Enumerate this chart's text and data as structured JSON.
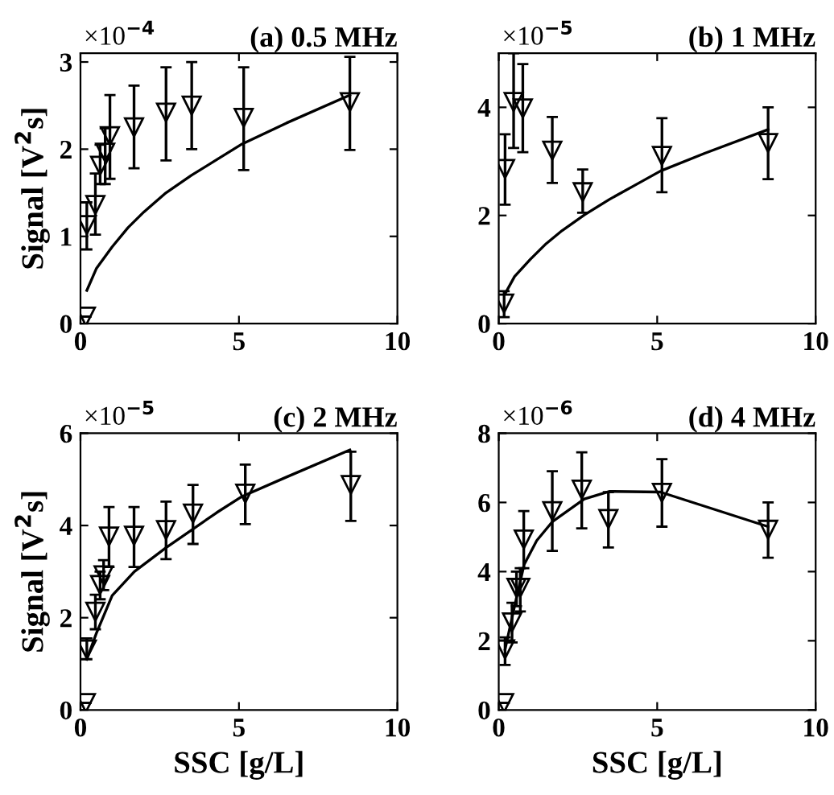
{
  "chart_data": [
    {
      "type": "scatter",
      "title": "(a) 0.5 MHz",
      "ylabel": "Signal [V$^{2}$s]",
      "annotations": [
        "×10$^{−4}$"
      ],
      "xlim": [
        0,
        10
      ],
      "xticks": [
        0,
        5,
        10
      ],
      "ylim": [
        0,
        3.1
      ],
      "yticks": [
        0,
        1,
        2,
        3
      ],
      "grid": false,
      "legend": false,
      "series": [
        {
          "color": "#000000",
          "marker": "triangle",
          "x": [
            0.17,
            0.2,
            0.47,
            0.62,
            0.78,
            0.93,
            1.69,
            2.7,
            3.51,
            5.15,
            8.5
          ],
          "values": [
            0.08,
            1.13,
            1.36,
            1.81,
            1.96,
            2.15,
            2.25,
            2.42,
            2.5,
            2.36,
            2.54
          ],
          "errors": [
            null,
            [
              0.85,
              1.39
            ],
            [
              1.02,
              1.72
            ],
            [
              1.6,
              2.05
            ],
            [
              1.6,
              2.24
            ],
            [
              1.66,
              2.62
            ],
            [
              1.78,
              2.73
            ],
            [
              1.87,
              2.94
            ],
            [
              2.0,
              3.0
            ],
            [
              1.76,
              2.94
            ],
            [
              1.99,
              3.06
            ]
          ]
        },
        {
          "type": "line",
          "color": "#000000",
          "marker": "none",
          "line_style": "solid",
          "x": [
            0.2,
            0.5,
            1,
            1.5,
            2,
            2.7,
            3.5,
            4.3,
            5.1,
            6.5,
            8.5
          ],
          "values": [
            0.38,
            0.63,
            0.88,
            1.1,
            1.28,
            1.5,
            1.7,
            1.88,
            2.06,
            2.3,
            2.62
          ]
        }
      ]
    },
    {
      "type": "scatter",
      "title": "(b) 1 MHz",
      "annotations": [
        "×10$^{−5}$"
      ],
      "xlim": [
        0,
        10
      ],
      "xticks": [
        0,
        5,
        10
      ],
      "ylim": [
        0,
        5
      ],
      "yticks": [
        0,
        2,
        4
      ],
      "grid": false,
      "legend": false,
      "series": [
        {
          "color": "#000000",
          "marker": "triangle",
          "x": [
            0.17,
            0.2,
            0.47,
            0.76,
            1.69,
            2.65,
            5.15,
            8.5
          ],
          "values": [
            0.37,
            2.86,
            4.1,
            3.98,
            3.2,
            2.43,
            3.1,
            3.34
          ],
          "errors": [
            [
              0.12,
              0.6
            ],
            [
              2.2,
              3.5
            ],
            [
              3.25,
              5.0
            ],
            [
              3.17,
              4.8
            ],
            [
              2.6,
              3.82
            ],
            [
              2.05,
              2.85
            ],
            [
              2.43,
              3.8
            ],
            [
              2.67,
              4.0
            ]
          ]
        },
        {
          "type": "line",
          "color": "#000000",
          "marker": "none",
          "line_style": "solid",
          "x": [
            0.2,
            0.5,
            1,
            1.5,
            2,
            2.7,
            3.5,
            4.3,
            5.1,
            6.5,
            8.5
          ],
          "values": [
            0.55,
            0.87,
            1.19,
            1.48,
            1.72,
            2.01,
            2.3,
            2.56,
            2.82,
            3.15,
            3.59
          ]
        }
      ]
    },
    {
      "type": "scatter",
      "title": "(c) 2 MHz",
      "xlabel": "SSC [g/L]",
      "ylabel": "Signal [V$^{2}$s]",
      "annotations": [
        "×10$^{−5}$"
      ],
      "xlim": [
        0,
        10
      ],
      "xticks": [
        0,
        5,
        10
      ],
      "ylim": [
        0,
        6
      ],
      "yticks": [
        0,
        2,
        4,
        6
      ],
      "grid": false,
      "legend": false,
      "series": [
        {
          "color": "#000000",
          "marker": "triangle",
          "x": [
            0.17,
            0.2,
            0.47,
            0.62,
            0.73,
            0.9,
            1.69,
            2.7,
            3.55,
            5.2,
            8.53
          ],
          "values": [
            0.15,
            1.31,
            2.13,
            2.71,
            2.92,
            3.76,
            3.78,
            3.9,
            4.26,
            4.69,
            4.88
          ],
          "errors": [
            null,
            [
              1.1,
              1.55
            ],
            [
              1.75,
              2.5
            ],
            [
              2.4,
              3.0
            ],
            [
              2.6,
              3.25
            ],
            [
              3.1,
              4.4
            ],
            [
              3.1,
              4.4
            ],
            [
              3.27,
              4.52
            ],
            [
              3.6,
              4.88
            ],
            [
              4.03,
              5.32
            ],
            [
              4.1,
              5.6
            ]
          ]
        },
        {
          "type": "line",
          "color": "#000000",
          "marker": "none",
          "line_style": "solid",
          "x": [
            0.2,
            0.5,
            1,
            1.7,
            2.7,
            3.5,
            4.3,
            5.1,
            6.5,
            8.5
          ],
          "values": [
            1.1,
            1.66,
            2.48,
            3.0,
            3.52,
            3.9,
            4.28,
            4.63,
            5.05,
            5.64
          ]
        }
      ]
    },
    {
      "type": "scatter",
      "title": "(d) 4 MHz",
      "xlabel": "SSC [g/L]",
      "annotations": [
        "×10$^{−6}$"
      ],
      "xlim": [
        0,
        10
      ],
      "xticks": [
        0,
        5,
        10
      ],
      "ylim": [
        0,
        8
      ],
      "yticks": [
        0,
        2,
        4,
        6,
        8
      ],
      "grid": false,
      "legend": false,
      "series": [
        {
          "color": "#000000",
          "marker": "triangle",
          "x": [
            0.17,
            0.2,
            0.42,
            0.56,
            0.68,
            0.79,
            1.69,
            2.62,
            3.46,
            5.15,
            8.5
          ],
          "values": [
            0.2,
            1.75,
            2.53,
            3.53,
            3.53,
            4.93,
            5.75,
            6.37,
            5.52,
            6.28,
            5.21
          ],
          "errors": [
            null,
            [
              1.3,
              2.1
            ],
            [
              1.95,
              3.1
            ],
            [
              3.0,
              4.0
            ],
            [
              2.85,
              4.1
            ],
            [
              4.1,
              5.75
            ],
            [
              4.6,
              6.9
            ],
            [
              5.25,
              7.45
            ],
            [
              4.7,
              6.3
            ],
            [
              5.3,
              7.25
            ],
            [
              4.4,
              6.0
            ]
          ]
        },
        {
          "type": "line",
          "color": "#000000",
          "marker": "none",
          "line_style": "solid",
          "x": [
            0.2,
            0.5,
            0.8,
            1.2,
            1.7,
            2.7,
            3.5,
            5.1,
            8.5
          ],
          "values": [
            1.75,
            3.0,
            4.2,
            4.9,
            5.45,
            6.1,
            6.32,
            6.3,
            5.3
          ]
        }
      ]
    }
  ]
}
